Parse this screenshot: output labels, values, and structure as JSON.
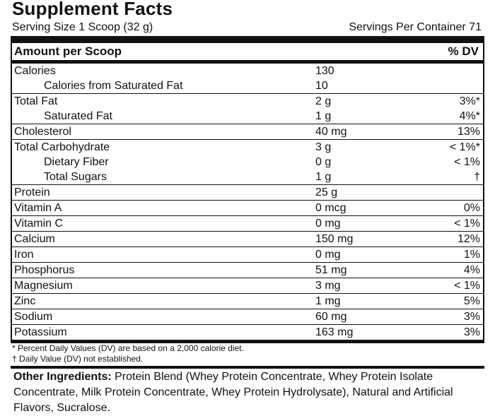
{
  "title": "Supplement Facts",
  "serving_size": "Serving Size 1 Scoop (32 g)",
  "servings_per_container": "Servings Per Container 71",
  "table": {
    "amount_header": "Amount per Scoop",
    "dv_header": "% DV",
    "rows": [
      {
        "name": "Calories",
        "amount": "130",
        "dv": ""
      },
      {
        "name": "Calories from Saturated Fat",
        "amount": "10",
        "dv": ""
      },
      {
        "name": "Total Fat",
        "amount": "2 g",
        "dv": "3%*"
      },
      {
        "name": "Saturated Fat",
        "amount": "1 g",
        "dv": "4%*"
      },
      {
        "name": "Cholesterol",
        "amount": "40 mg",
        "dv": "13%"
      },
      {
        "name": "Total Carbohydrate",
        "amount": "3 g",
        "dv": "< 1%*"
      },
      {
        "name": "Dietary Fiber",
        "amount": "0 g",
        "dv": "< 1%"
      },
      {
        "name": "Total Sugars",
        "amount": "1 g",
        "dv": "†"
      },
      {
        "name": "Protein",
        "amount": "25 g",
        "dv": ""
      },
      {
        "name": "Vitamin A",
        "amount": "0 mcg",
        "dv": "0%"
      },
      {
        "name": "Vitamin C",
        "amount": "0 mg",
        "dv": "< 1%"
      },
      {
        "name": "Calcium",
        "amount": "150 mg",
        "dv": "12%"
      },
      {
        "name": "Iron",
        "amount": "0 mg",
        "dv": "1%"
      },
      {
        "name": "Phosphorus",
        "amount": "51 mg",
        "dv": "4%"
      },
      {
        "name": "Magnesium",
        "amount": "3 mg",
        "dv": "< 1%"
      },
      {
        "name": "Zinc",
        "amount": "1 mg",
        "dv": "5%"
      },
      {
        "name": "Sodium",
        "amount": "60 mg",
        "dv": "3%"
      },
      {
        "name": "Potassium",
        "amount": "163 mg",
        "dv": "3%"
      }
    ]
  },
  "footnotes": {
    "percent_dv": "* Percent Daily Values (DV) are based on a 2,000 calorie diet.",
    "not_established": "† Daily Value (DV) not established."
  },
  "ingredients": {
    "label": "Other Ingredients:",
    "text": " Protein Blend (Whey Protein Concentrate, Whey Protein Isolate Concentrate, Milk Protein Concentrate, Whey Protein Hydrolysate), Natural and Artificial Flavors, Sucralose."
  }
}
